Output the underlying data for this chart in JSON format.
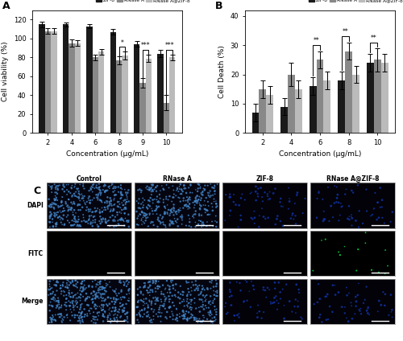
{
  "panel_A": {
    "title": "A",
    "xlabel": "Concentration (μg/mL)",
    "ylabel": "Cell viability (%)",
    "concentrations": [
      2,
      4,
      6,
      8,
      9,
      10
    ],
    "ZIF8": [
      115,
      115,
      113,
      107,
      94,
      84
    ],
    "ZIF8_err": [
      3,
      2,
      2,
      3,
      3,
      4
    ],
    "RNaseA": [
      108,
      95,
      80,
      77,
      53,
      32
    ],
    "RNaseA_err": [
      3,
      4,
      3,
      4,
      5,
      8
    ],
    "RNaseA_ZIF8": [
      108,
      95,
      86,
      82,
      79,
      80
    ],
    "RNaseA_ZIF8_err": [
      3,
      3,
      3,
      4,
      4,
      3
    ],
    "ylim": [
      0,
      130
    ],
    "yticks": [
      0,
      20,
      40,
      60,
      80,
      100,
      120
    ],
    "sig_info": [
      {
        "xi": 3,
        "label": "*"
      },
      {
        "xi": 4,
        "label": "***"
      },
      {
        "xi": 5,
        "label": "***"
      }
    ],
    "bar_colors": [
      "#1a1a1a",
      "#888888",
      "#bbbbbb"
    ],
    "legend_labels": [
      "ZIF-8",
      "RNase A",
      "RNase A@ZIF-8"
    ]
  },
  "panel_B": {
    "title": "B",
    "xlabel": "Concentration (μg/mL)",
    "ylabel": "Cell Death (%)",
    "concentrations": [
      2,
      4,
      6,
      8,
      10
    ],
    "ZIF8": [
      7,
      9,
      16,
      18,
      24
    ],
    "ZIF8_err": [
      3,
      3,
      3,
      3,
      3
    ],
    "RNaseA": [
      15,
      20,
      25,
      28,
      25
    ],
    "RNaseA_err": [
      3,
      4,
      3,
      3,
      4
    ],
    "RNaseA_ZIF8": [
      13,
      15,
      18,
      20,
      24
    ],
    "RNaseA_ZIF8_err": [
      3,
      3,
      3,
      3,
      3
    ],
    "ylim": [
      0,
      42
    ],
    "yticks": [
      0,
      10,
      20,
      30,
      40
    ],
    "sig_info": [
      {
        "xi": 2,
        "label": "**"
      },
      {
        "xi": 3,
        "label": "**"
      },
      {
        "xi": 4,
        "label": "**"
      }
    ],
    "bar_colors": [
      "#1a1a1a",
      "#888888",
      "#bbbbbb"
    ],
    "legend_labels": [
      "ZIF-8",
      "RNase A",
      "RNase A@ZIF-8"
    ]
  },
  "panel_C": {
    "row_labels": [
      "DAPI",
      "FITC",
      "Merge"
    ],
    "col_labels": [
      "Control",
      "RNase A",
      "ZIF-8",
      "RNase A@ZIF-8"
    ]
  },
  "figure": {
    "bg_color": "#ffffff"
  }
}
